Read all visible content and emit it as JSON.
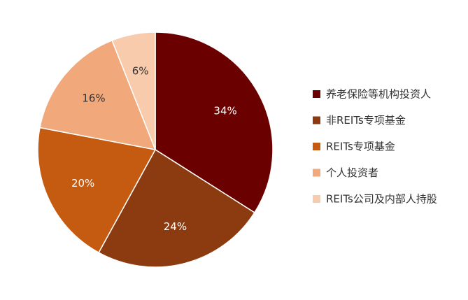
{
  "chart_data": {
    "type": "pie",
    "categories": [
      "养老保险等机构投资人",
      "非REITs专项基金",
      "REITs专项基金",
      "个人投资者",
      "REITs公司及内部人持股"
    ],
    "values": [
      34,
      24,
      20,
      16,
      6
    ],
    "value_labels": [
      "34%",
      "24%",
      "20%",
      "16%",
      "6%"
    ],
    "colors": [
      "#6b0000",
      "#8c3b10",
      "#c55a11",
      "#f1a97c",
      "#f8cbad"
    ],
    "legend": "right"
  }
}
